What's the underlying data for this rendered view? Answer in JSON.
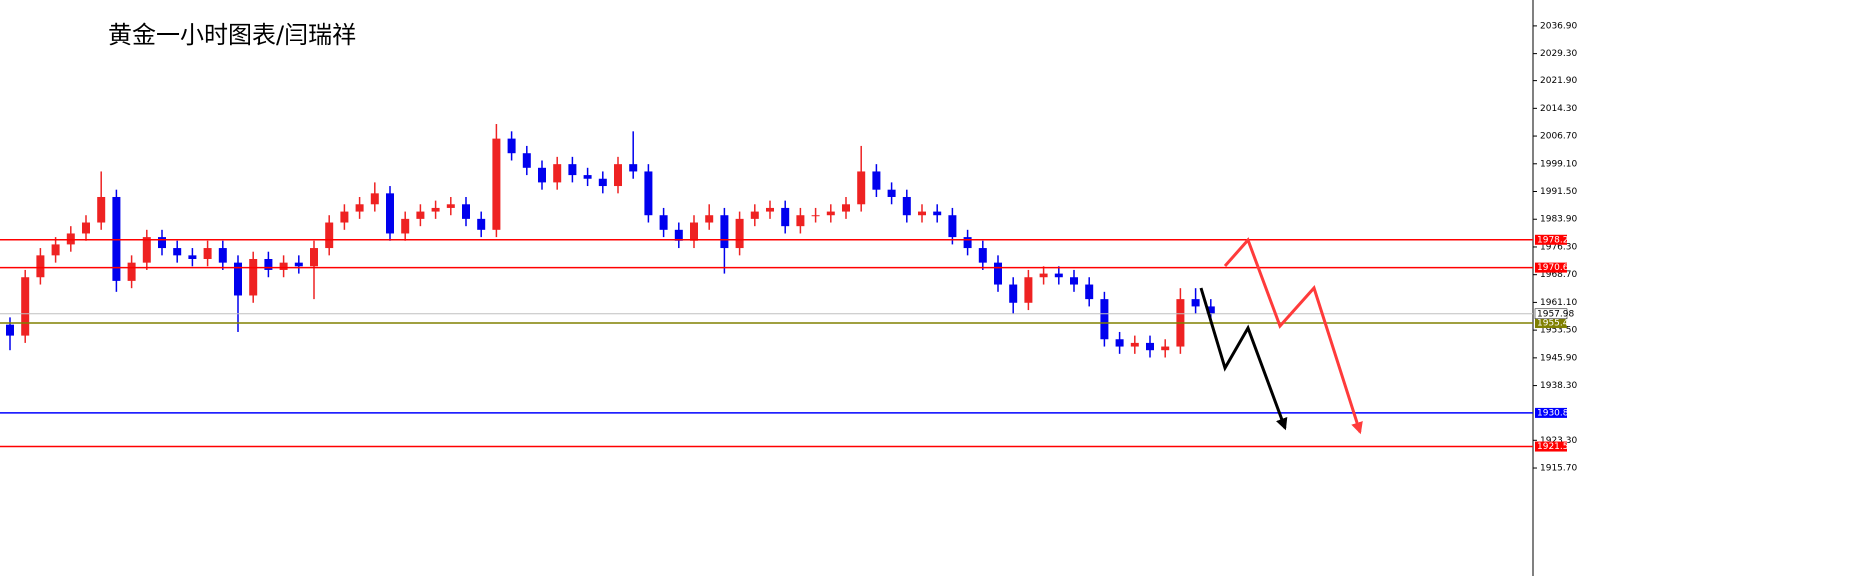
{
  "chart_data": {
    "type": "candlestick",
    "title": "黄金一小时图表/闫瑞祥",
    "ylim": [
      1886.1,
      2044.0
    ],
    "yticks": [
      {
        "value": 1915.7,
        "label": "1915.70"
      },
      {
        "value": 1923.3,
        "label": "1923.30"
      },
      {
        "value": 1938.3,
        "label": "1938.30"
      },
      {
        "value": 1945.9,
        "label": "1945.90"
      },
      {
        "value": 1953.5,
        "label": "1953.50"
      },
      {
        "value": 1961.1,
        "label": "1961.10"
      },
      {
        "value": 1968.7,
        "label": "1968.70"
      },
      {
        "value": 1976.3,
        "label": "1976.30"
      },
      {
        "value": 1983.9,
        "label": "1983.90"
      },
      {
        "value": 1991.5,
        "label": "1991.50"
      },
      {
        "value": 1999.1,
        "label": "1999.10"
      },
      {
        "value": 2006.7,
        "label": "2006.70"
      },
      {
        "value": 2014.3,
        "label": "2014.30"
      },
      {
        "value": 2021.9,
        "label": "2021.90"
      },
      {
        "value": 2029.3,
        "label": "2029.30"
      },
      {
        "value": 2036.9,
        "label": "2036.90"
      }
    ],
    "up_color": "#ee2222",
    "down_color": "#0000ee",
    "open": [
      1955,
      1952,
      1968,
      1974,
      1977,
      1980,
      1983,
      1990,
      1967,
      1972,
      1979,
      1976,
      1974,
      1973,
      1976,
      1972,
      1963,
      1973,
      1970,
      1972,
      1971,
      1976,
      1983,
      1986,
      1988,
      1991,
      1980,
      1984,
      1986,
      1987,
      1988,
      1984,
      1981,
      2006,
      2002,
      1998,
      1994,
      1999,
      1996,
      1995,
      1993,
      1999,
      1997,
      1985,
      1981,
      1978,
      1983,
      1985,
      1976,
      1984,
      1986,
      1987,
      1982,
      1985,
      1985,
      1986,
      1988,
      1997,
      1992,
      1990,
      1985,
      1986,
      1985,
      1979,
      1976,
      1972,
      1966,
      1961,
      1968,
      1969,
      1968,
      1966,
      1962,
      1951,
      1949,
      1950,
      1948,
      1949,
      1962,
      1960
    ],
    "high": [
      1957,
      1970,
      1976,
      1979,
      1982,
      1985,
      1997,
      1992,
      1974,
      1981,
      1981,
      1978,
      1976,
      1978,
      1978,
      1974,
      1975,
      1975,
      1974,
      1974,
      1978,
      1985,
      1988,
      1990,
      1994,
      1993,
      1986,
      1988,
      1989,
      1990,
      1990,
      1986,
      2010,
      2008,
      2004,
      2000,
      2001,
      2001,
      1998,
      1997,
      2001,
      2008,
      1999,
      1987,
      1983,
      1985,
      1988,
      1987,
      1986,
      1988,
      1989,
      1989,
      1987,
      1987,
      1988,
      1990,
      2004,
      1999,
      1994,
      1992,
      1988,
      1988,
      1987,
      1981,
      1978,
      1974,
      1968,
      1970,
      1971,
      1971,
      1970,
      1968,
      1964,
      1953,
      1952,
      1952,
      1951,
      1965,
      1965,
      1962
    ],
    "low": [
      1948,
      1950,
      1966,
      1972,
      1975,
      1978,
      1981,
      1964,
      1965,
      1970,
      1974,
      1972,
      1971,
      1971,
      1970,
      1953,
      1961,
      1968,
      1968,
      1969,
      1962,
      1974,
      1981,
      1984,
      1986,
      1978,
      1978,
      1982,
      1984,
      1985,
      1982,
      1979,
      1979,
      2000,
      1996,
      1992,
      1992,
      1994,
      1993,
      1991,
      1991,
      1995,
      1983,
      1979,
      1976,
      1976,
      1981,
      1969,
      1974,
      1982,
      1984,
      1980,
      1980,
      1983,
      1983,
      1984,
      1986,
      1990,
      1988,
      1983,
      1983,
      1983,
      1977,
      1974,
      1970,
      1964,
      1958,
      1959,
      1966,
      1966,
      1964,
      1960,
      1949,
      1947,
      1947,
      1946,
      1946,
      1947,
      1958,
      1956
    ],
    "close": [
      1952,
      1968,
      1974,
      1977,
      1980,
      1983,
      1990,
      1967,
      1972,
      1979,
      1976,
      1974,
      1973,
      1976,
      1972,
      1963,
      1973,
      1970,
      1972,
      1971,
      1976,
      1983,
      1986,
      1988,
      1991,
      1980,
      1984,
      1986,
      1987,
      1988,
      1984,
      1981,
      2006,
      2002,
      1998,
      1994,
      1999,
      1996,
      1995,
      1993,
      1999,
      1997,
      1985,
      1981,
      1978,
      1983,
      1985,
      1976,
      1984,
      1986,
      1987,
      1982,
      1985,
      1985,
      1986,
      1988,
      1997,
      1992,
      1990,
      1985,
      1986,
      1985,
      1979,
      1976,
      1972,
      1966,
      1961,
      1968,
      1969,
      1968,
      1966,
      1962,
      1951,
      1949,
      1950,
      1948,
      1949,
      1962,
      1960,
      1958
    ],
    "levels": [
      {
        "value": 1978.27,
        "color": "#ff0000"
      },
      {
        "value": 1970.64,
        "color": "#ff0000"
      },
      {
        "value": 1955.45,
        "color": "#808000"
      },
      {
        "value": 1930.81,
        "color": "#0000ff"
      },
      {
        "value": 1921.59,
        "color": "#ff0000"
      }
    ],
    "current_price": 1957.98
  }
}
